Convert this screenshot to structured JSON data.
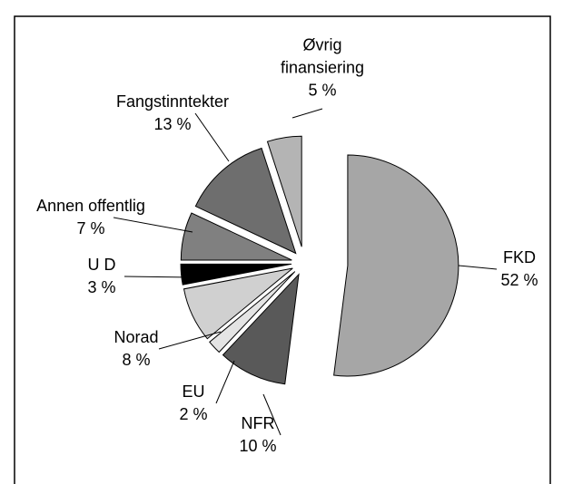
{
  "chart_data": {
    "type": "pie",
    "categories": [
      "FKD",
      "NFR",
      "EU",
      "Norad",
      "U D",
      "Annen offentlig",
      "Fangstinntekter",
      "Øvrig finansiering"
    ],
    "values": [
      52,
      10,
      2,
      8,
      3,
      7,
      13,
      5
    ],
    "value_labels": [
      "52 %",
      "10 %",
      "2 %",
      "8 %",
      "3 %",
      "7 %",
      "13 %",
      "5 %"
    ],
    "colors": [
      "#a6a6a6",
      "#595959",
      "#e4e4e4",
      "#d0d0d0",
      "#000000",
      "#808080",
      "#6e6e6e",
      "#b4b4b4"
    ]
  }
}
